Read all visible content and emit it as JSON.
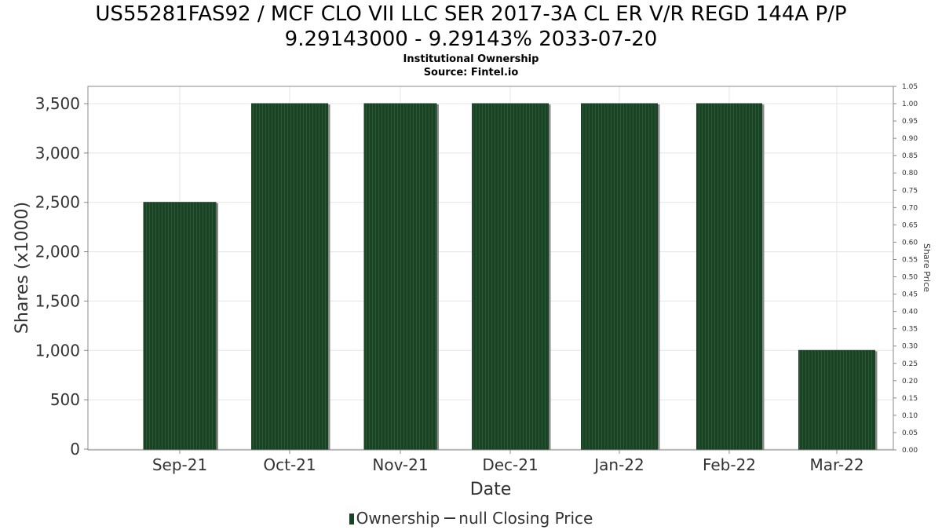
{
  "chart_data": {
    "type": "bar",
    "title": "US55281FAS92 / MCF CLO VII LLC SER 2017-3A CL ER V/R REGD 144A P/P",
    "title_line2": "9.29143000 - 9.29143% 2033-07-20",
    "subtitle": "Institutional Ownership",
    "source": "Source: Fintel.io",
    "xlabel": "Date",
    "ylabel": "Shares (x1000)",
    "y2label": "Share Price",
    "categories": [
      "Sep-21",
      "Oct-21",
      "Nov-21",
      "Dec-21",
      "Jan-22",
      "Feb-22",
      "Mar-22"
    ],
    "series": [
      {
        "name": "Ownership",
        "values": [
          2500,
          3500,
          3500,
          3500,
          3500,
          3500,
          1000
        ]
      }
    ],
    "ylim": [
      0,
      3500
    ],
    "yticks": [
      "0",
      "500",
      "1,000",
      "1,500",
      "2,000",
      "2,500",
      "3,000",
      "3,500"
    ],
    "y2lim": [
      0,
      1.05
    ],
    "y2ticks": [
      "0.00",
      "0.05",
      "0.10",
      "0.15",
      "0.20",
      "0.25",
      "0.30",
      "0.35",
      "0.40",
      "0.45",
      "0.50",
      "0.55",
      "0.60",
      "0.65",
      "0.70",
      "0.75",
      "0.80",
      "0.85",
      "0.90",
      "0.95",
      "1.00",
      "1.05"
    ],
    "grid": true,
    "legend": [
      "Ownership",
      "null Closing Price"
    ],
    "legend_position": "bottom",
    "colors": {
      "bar": "#1a4224",
      "bar_stripe": "#244f2e",
      "shadow": "#8a8a8a",
      "grid": "#e4e4e4",
      "axis": "#888888"
    }
  }
}
